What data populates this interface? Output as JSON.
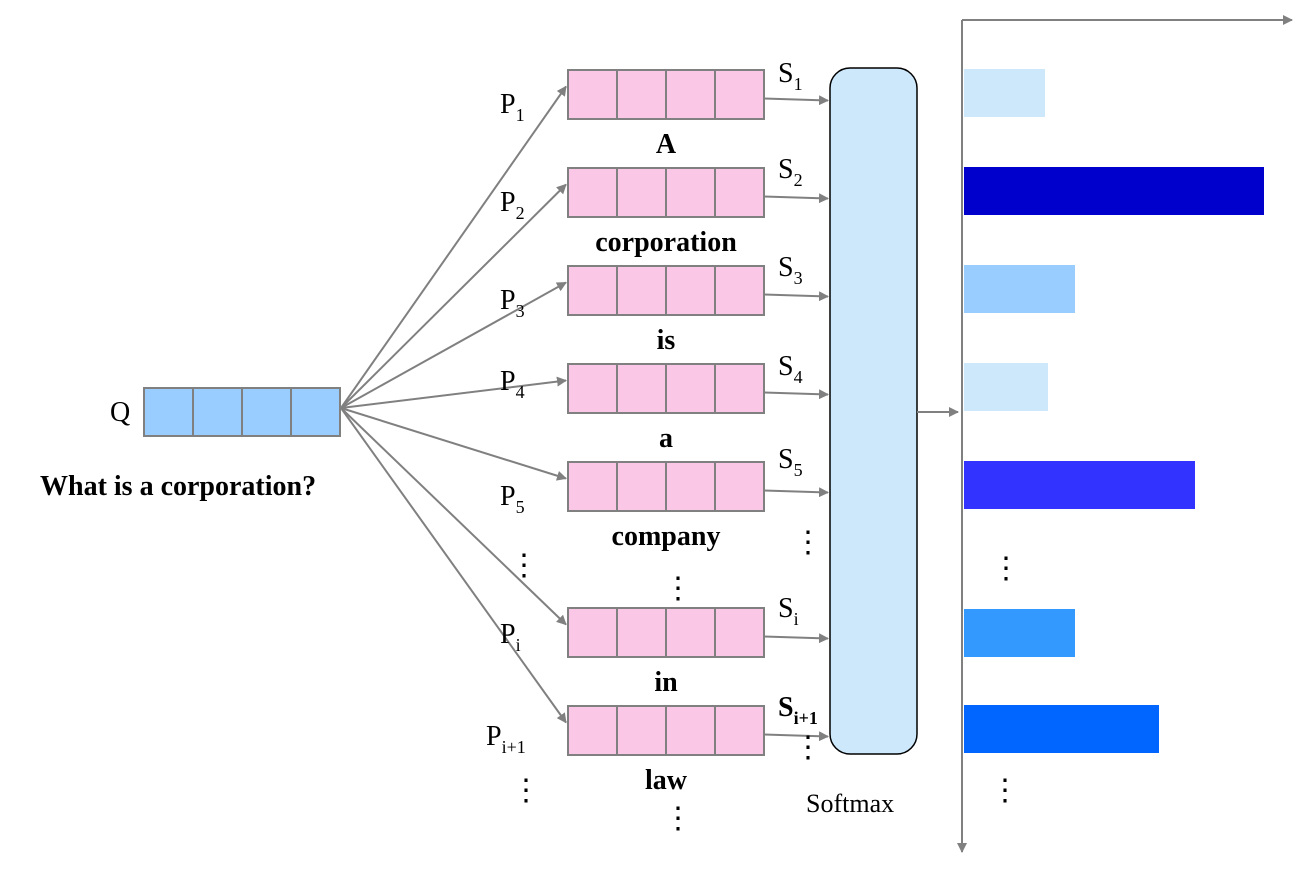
{
  "query": {
    "label": "Q",
    "text": "What is a corporation?",
    "color": "#99ccff"
  },
  "token_color": "#fac8e6",
  "tokens": [
    {
      "p": "P",
      "p_sub": "1",
      "s": "S",
      "s_sub": "1",
      "word": "A"
    },
    {
      "p": "P",
      "p_sub": "2",
      "s": "S",
      "s_sub": "2",
      "word": "corporation"
    },
    {
      "p": "P",
      "p_sub": "3",
      "s": "S",
      "s_sub": "3",
      "word": "is"
    },
    {
      "p": "P",
      "p_sub": "4",
      "s": "S",
      "s_sub": "4",
      "word": "a"
    },
    {
      "p": "P",
      "p_sub": "5",
      "s": "S",
      "s_sub": "5",
      "word": "company"
    },
    {
      "p": "P",
      "p_sub": "i",
      "s": "S",
      "s_sub": "i",
      "word": "in"
    },
    {
      "p": "P",
      "p_sub": "i+1",
      "s": "S",
      "s_sub": "i+1",
      "word": "law"
    }
  ],
  "ellipsis": "⋮",
  "softmax": {
    "label": "Softmax",
    "color": "#cce8fa"
  },
  "bars": [
    {
      "value": 0.27,
      "color": "#cce8fa"
    },
    {
      "value": 1.0,
      "color": "#0000cc"
    },
    {
      "value": 0.37,
      "color": "#99ccff"
    },
    {
      "value": 0.28,
      "color": "#cce8fa"
    },
    {
      "value": 0.77,
      "color": "#3333ff"
    },
    {
      "value": 0.37,
      "color": "#3399ff"
    },
    {
      "value": 0.65,
      "color": "#0066ff"
    }
  ]
}
